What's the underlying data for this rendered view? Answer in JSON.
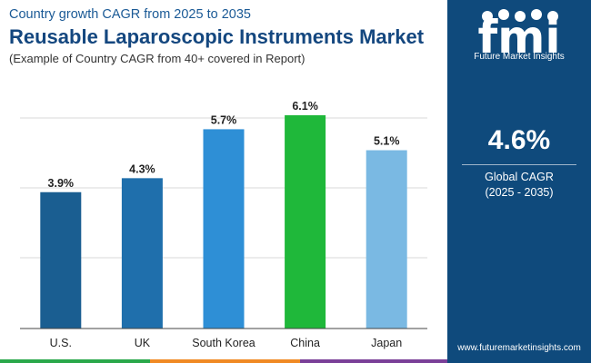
{
  "header": {
    "subtitle": "Country growth CAGR from 2025 to 2035",
    "title": "Reusable Laparoscopic Instruments Market",
    "note": "(Example of Country CAGR from 40+ covered in Report)"
  },
  "chart_data": {
    "type": "bar",
    "categories": [
      "U.S.",
      "UK",
      "South Korea",
      "China",
      "Japan"
    ],
    "values": [
      3.9,
      4.3,
      5.7,
      6.1,
      5.1
    ],
    "data_labels": [
      "3.9%",
      "4.3%",
      "5.7%",
      "6.1%",
      "5.1%"
    ],
    "colors": [
      "#1a5e91",
      "#1f6fac",
      "#2e8fd6",
      "#1fb83a",
      "#7ab9e3"
    ],
    "unit": "%",
    "ylim": [
      0,
      6.1
    ],
    "grid": true,
    "title": "",
    "xlabel": "",
    "ylabel": ""
  },
  "sidebar": {
    "logo_text": "fmi",
    "logo_caption": "Future Market Insights",
    "kpi_value": "4.6%",
    "kpi_label": "Global CAGR",
    "kpi_period": "(2025 - 2035)",
    "website": "www.futuremarketinsights.com"
  },
  "colors": {
    "title": "#14477f",
    "sidebar_bg": "#0f4a7c",
    "grid": "#d9d9d9",
    "axis": "#444444"
  }
}
